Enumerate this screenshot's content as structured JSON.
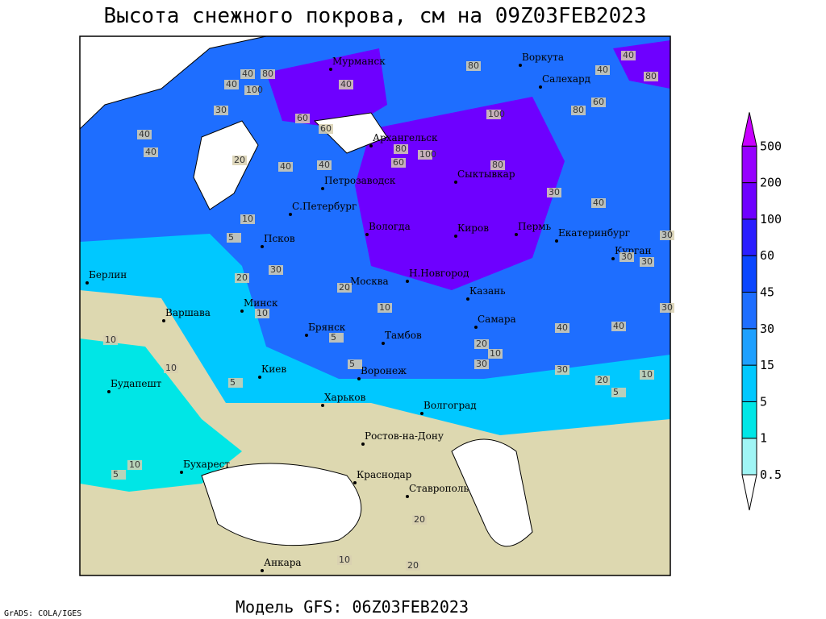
{
  "header": {
    "title": "Высота снежного покрова, см на 09Z03FEB2023"
  },
  "footer": {
    "model": "Модель GFS: 06Z03FEB2023",
    "credit": "GrADS: COLA/IGES"
  },
  "colorbar": {
    "levels": [
      0.5,
      1,
      5,
      15,
      30,
      45,
      60,
      100,
      200,
      500
    ],
    "colors": [
      "#ffffff",
      "#a0f5f5",
      "#00e6e6",
      "#00c8ff",
      "#1ea0ff",
      "#1e6eff",
      "#0a46ff",
      "#2a1eff",
      "#6e00ff",
      "#9600ff",
      "#c800ff"
    ]
  },
  "cities": [
    "Мурманск",
    "Воркута",
    "Салехард",
    "Архангельск",
    "Сыктывкар",
    "Петрозаводск",
    "С.Петербург",
    "Вологда",
    "Киров",
    "Пермь",
    "Екатеринбург",
    "Курган",
    "Псков",
    "Н.Новгород",
    "Москва",
    "Казань",
    "Берлин",
    "Минск",
    "Варшава",
    "Брянск",
    "Тамбов",
    "Самара",
    "Киев",
    "Воронеж",
    "Будапешт",
    "Харьков",
    "Волгоград",
    "Ростов-на-Дону",
    "Бухарест",
    "Краснодар",
    "Ставрополь",
    "Анкара"
  ],
  "contour_labels": [
    40,
    80,
    100,
    40,
    30,
    40,
    40,
    20,
    40,
    60,
    40,
    60,
    40,
    80,
    100,
    60,
    100,
    80,
    80,
    40,
    40,
    30,
    40,
    30,
    60,
    80,
    80,
    30,
    30,
    30,
    20,
    10,
    20,
    10,
    10,
    10,
    10,
    5,
    5,
    5,
    20,
    30,
    20,
    10,
    5,
    10,
    5,
    20,
    10,
    30,
    40,
    40,
    30,
    10,
    20,
    5
  ]
}
